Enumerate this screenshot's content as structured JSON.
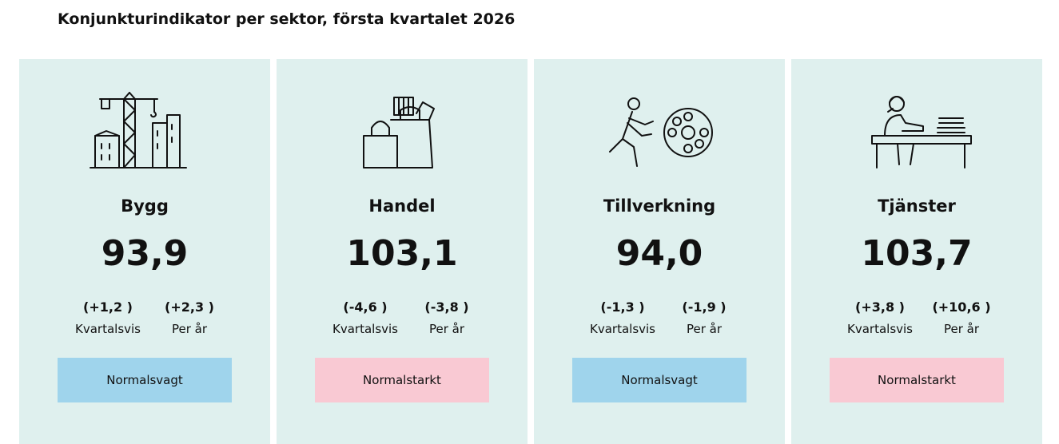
{
  "header": {
    "title": "Konjunkturindikator per sektor, första kvartalet 2026"
  },
  "cards": [
    {
      "name": "Bygg",
      "value": "93,9",
      "quarterly": "(+1,2 )",
      "quarterly_label": "Kvartalsvis",
      "yearly": "(+2,3 )",
      "yearly_label": "Per år",
      "status": "Normalsvagt",
      "status_color": "#9fd4ec"
    },
    {
      "name": "Handel",
      "value": "103,1",
      "quarterly": "(-4,6 )",
      "quarterly_label": "Kvartalsvis",
      "yearly": "(-3,8 )",
      "yearly_label": "Per år",
      "status": "Normalstarkt",
      "status_color": "#f9c9d3"
    },
    {
      "name": "Tillverkning",
      "value": "94,0",
      "quarterly": "(-1,3 )",
      "quarterly_label": "Kvartalsvis",
      "yearly": "(-1,9 )",
      "yearly_label": "Per år",
      "status": "Normalsvagt",
      "status_color": "#9fd4ec"
    },
    {
      "name": "Tjänster",
      "value": "103,7",
      "quarterly": "(+3,8 )",
      "quarterly_label": "Kvartalsvis",
      "yearly": "(+10,6 )",
      "yearly_label": "Per år",
      "status": "Normalstarkt",
      "status_color": "#f9c9d3"
    }
  ]
}
